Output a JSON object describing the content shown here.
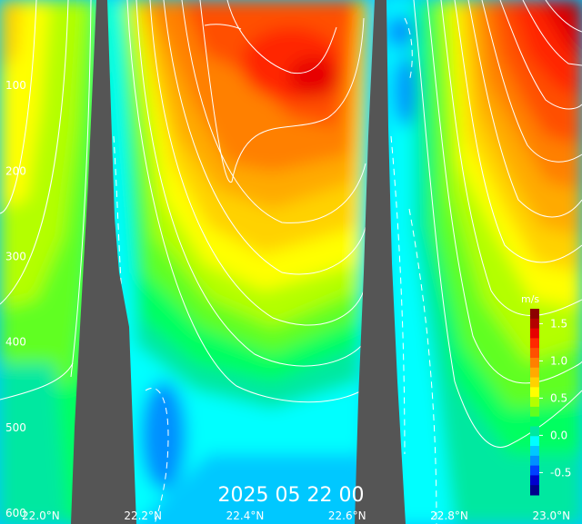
{
  "chart_data": {
    "type": "heatmap",
    "title": "2025 05 22 00",
    "x_ticks": [
      "22.0°N",
      "22.2°N",
      "22.4°N",
      "22.6°N",
      "22.8°N",
      "23.0°N"
    ],
    "xlim": [
      21.92,
      23.06
    ],
    "y_ticks": [
      "100",
      "200",
      "300",
      "400",
      "500",
      "600"
    ],
    "ylim": [
      0,
      600
    ],
    "y_inverted": true,
    "colorbar": {
      "unit": "m/s",
      "ticks": [
        "1.5",
        "1.0",
        "0.5",
        "0.0",
        "-0.5"
      ],
      "range": [
        -0.8,
        1.7
      ],
      "colors": [
        "#00008c",
        "#0000cd",
        "#0040ff",
        "#0090ff",
        "#00c8ff",
        "#00ffff",
        "#00e8a0",
        "#00ff60",
        "#60ff20",
        "#b4ff00",
        "#ffff00",
        "#ffd200",
        "#ffaa00",
        "#ff8000",
        "#ff5000",
        "#ff2800",
        "#e60000",
        "#b40000",
        "#8c0000"
      ]
    },
    "topography_color": "#555555",
    "contour_color": "#ffffff",
    "grid": false
  }
}
